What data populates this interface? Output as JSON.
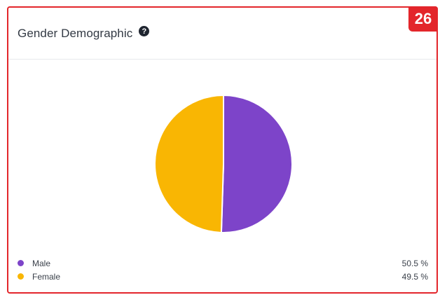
{
  "card": {
    "badge": "26",
    "title": "Gender Demographic",
    "help_icon": "question-circle-icon"
  },
  "colors": {
    "frame": "#e3262b",
    "male": "#7d44c9",
    "female": "#f9b603"
  },
  "chart_data": {
    "type": "pie",
    "title": "Gender Demographic",
    "slices": [
      {
        "label": "Male",
        "value": 50.5,
        "display": "50.5 %",
        "color": "#7d44c9"
      },
      {
        "label": "Female",
        "value": 49.5,
        "display": "49.5 %",
        "color": "#f9b603"
      }
    ],
    "legend_position": "bottom"
  }
}
